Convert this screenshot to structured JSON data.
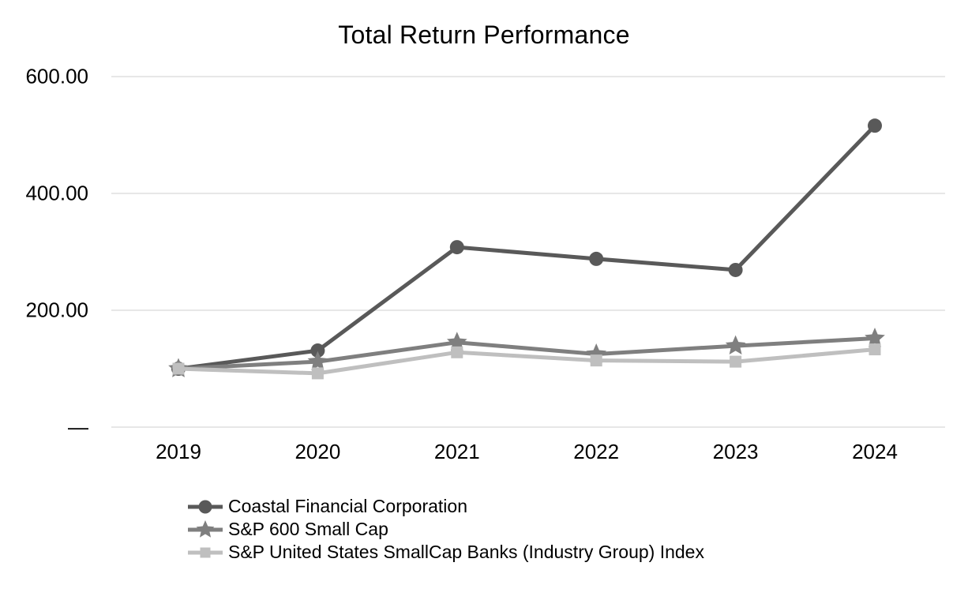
{
  "title": "Total Return Performance",
  "chart_data": {
    "type": "line",
    "title": "Total Return Performance",
    "categories": [
      "2019",
      "2020",
      "2021",
      "2022",
      "2023",
      "2024"
    ],
    "series": [
      {
        "name": "Coastal Financial Corporation",
        "marker": "circle",
        "color": "#595959",
        "values": [
          100,
          131,
          308,
          288,
          269,
          516
        ]
      },
      {
        "name": "S&P 600 Small Cap",
        "marker": "star",
        "color": "#7f7f7f",
        "values": [
          100,
          112,
          145,
          125,
          139,
          152
        ]
      },
      {
        "name": "S&P United States SmallCap Banks (Industry Group) Index",
        "marker": "square",
        "color": "#bfbfbf",
        "values": [
          100,
          92,
          128,
          114,
          112,
          133
        ]
      }
    ],
    "y_axis": {
      "min": 0,
      "max": 600,
      "ticks": [
        {
          "value": 0,
          "label": "—"
        },
        {
          "value": 200,
          "label": "200.00"
        },
        {
          "value": 400,
          "label": "400.00"
        },
        {
          "value": 600,
          "label": "600.00"
        }
      ]
    },
    "grid": "horizontal",
    "legend_position": "bottom-left",
    "colors": {
      "gridline": "#e7e7e7",
      "text": "#000000",
      "background": "#ffffff"
    }
  }
}
